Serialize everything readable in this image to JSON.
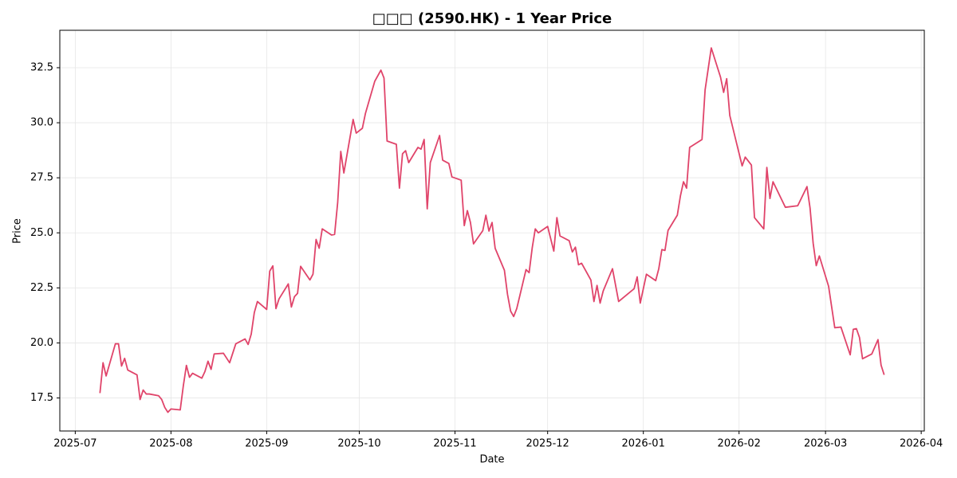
{
  "chart_data": {
    "type": "line",
    "title": "□□□ (2590.HK) - 1 Year Price",
    "x_label": "Date",
    "y_label": "Price",
    "color": "#e0446a",
    "grid": true,
    "x": [
      "2025-07-09",
      "2025-07-10",
      "2025-07-11",
      "2025-07-14",
      "2025-07-15",
      "2025-07-16",
      "2025-07-17",
      "2025-07-18",
      "2025-07-21",
      "2025-07-22",
      "2025-07-23",
      "2025-07-24",
      "2025-07-25",
      "2025-07-28",
      "2025-07-29",
      "2025-07-30",
      "2025-07-31",
      "2025-08-01",
      "2025-08-04",
      "2025-08-05",
      "2025-08-06",
      "2025-08-07",
      "2025-08-08",
      "2025-08-11",
      "2025-08-12",
      "2025-08-13",
      "2025-08-14",
      "2025-08-15",
      "2025-08-18",
      "2025-08-20",
      "2025-08-22",
      "2025-08-25",
      "2025-08-26",
      "2025-08-27",
      "2025-08-28",
      "2025-08-29",
      "2025-09-01",
      "2025-09-02",
      "2025-09-03",
      "2025-09-04",
      "2025-09-05",
      "2025-09-08",
      "2025-09-09",
      "2025-09-10",
      "2025-09-11",
      "2025-09-12",
      "2025-09-15",
      "2025-09-16",
      "2025-09-17",
      "2025-09-18",
      "2025-09-19",
      "2025-09-22",
      "2025-09-23",
      "2025-09-24",
      "2025-09-25",
      "2025-09-26",
      "2025-09-29",
      "2025-09-30",
      "2025-10-02",
      "2025-10-03",
      "2025-10-06",
      "2025-10-08",
      "2025-10-09",
      "2025-10-10",
      "2025-10-13",
      "2025-10-14",
      "2025-10-15",
      "2025-10-16",
      "2025-10-17",
      "2025-10-20",
      "2025-10-21",
      "2025-10-22",
      "2025-10-23",
      "2025-10-24",
      "2025-10-27",
      "2025-10-28",
      "2025-10-30",
      "2025-10-31",
      "2025-11-03",
      "2025-11-04",
      "2025-11-05",
      "2025-11-06",
      "2025-11-07",
      "2025-11-10",
      "2025-11-11",
      "2025-11-12",
      "2025-11-13",
      "2025-11-14",
      "2025-11-17",
      "2025-11-18",
      "2025-11-19",
      "2025-11-20",
      "2025-11-21",
      "2025-11-24",
      "2025-11-25",
      "2025-11-26",
      "2025-11-27",
      "2025-11-28",
      "2025-12-01",
      "2025-12-03",
      "2025-12-04",
      "2025-12-05",
      "2025-12-08",
      "2025-12-09",
      "2025-12-10",
      "2025-12-11",
      "2025-12-12",
      "2025-12-15",
      "2025-12-16",
      "2025-12-17",
      "2025-12-18",
      "2025-12-19",
      "2025-12-22",
      "2025-12-24",
      "2025-12-29",
      "2025-12-30",
      "2025-12-31",
      "2026-01-02",
      "2026-01-05",
      "2026-01-06",
      "2026-01-07",
      "2026-01-08",
      "2026-01-09",
      "2026-01-12",
      "2026-01-13",
      "2026-01-14",
      "2026-01-15",
      "2026-01-16",
      "2026-01-20",
      "2026-01-21",
      "2026-01-23",
      "2026-01-26",
      "2026-01-27",
      "2026-01-28",
      "2026-01-29",
      "2026-02-02",
      "2026-02-03",
      "2026-02-05",
      "2026-02-06",
      "2026-02-09",
      "2026-02-10",
      "2026-02-11",
      "2026-02-12",
      "2026-02-16",
      "2026-02-20",
      "2026-02-23",
      "2026-02-24",
      "2026-02-25",
      "2026-02-26",
      "2026-02-27",
      "2026-03-02",
      "2026-03-04",
      "2026-03-06",
      "2026-03-09",
      "2026-03-10",
      "2026-03-11",
      "2026-03-12",
      "2026-03-13",
      "2026-03-16",
      "2026-03-18",
      "2026-03-19",
      "2026-03-20"
    ],
    "values": [
      17.72,
      19.1,
      18.5,
      19.96,
      19.96,
      18.95,
      19.3,
      18.77,
      18.55,
      17.43,
      17.86,
      17.68,
      17.68,
      17.6,
      17.43,
      17.07,
      16.85,
      17.0,
      16.96,
      18.05,
      18.98,
      18.44,
      18.62,
      18.4,
      18.7,
      19.17,
      18.8,
      19.5,
      19.53,
      19.1,
      19.96,
      20.18,
      19.93,
      20.4,
      21.38,
      21.88,
      21.52,
      23.26,
      23.5,
      21.56,
      22.0,
      22.68,
      21.63,
      22.1,
      22.25,
      23.48,
      22.86,
      23.12,
      24.7,
      24.3,
      25.18,
      24.9,
      24.93,
      26.38,
      28.7,
      27.72,
      30.15,
      29.53,
      29.75,
      30.43,
      31.88,
      32.39,
      32.03,
      29.17,
      29.02,
      27.03,
      28.59,
      28.73,
      28.19,
      28.88,
      28.8,
      29.24,
      26.09,
      28.19,
      29.42,
      28.3,
      28.15,
      27.54,
      27.39,
      25.33,
      26.01,
      25.47,
      24.5,
      25.1,
      25.8,
      25.08,
      25.47,
      24.3,
      23.3,
      22.21,
      21.45,
      21.2,
      21.56,
      23.33,
      23.19,
      24.31,
      25.18,
      25.0,
      25.29,
      24.17,
      25.69,
      24.86,
      24.64,
      24.13,
      24.35,
      23.55,
      23.62,
      22.86,
      21.88,
      22.61,
      21.81,
      22.36,
      23.37,
      21.88,
      22.46,
      23.0,
      21.81,
      23.12,
      22.83,
      23.37,
      24.24,
      24.2,
      25.11,
      25.8,
      26.67,
      27.32,
      27.03,
      28.88,
      29.24,
      31.49,
      33.4,
      32.07,
      31.38,
      32.0,
      30.33,
      28.04,
      28.44,
      28.08,
      25.69,
      25.18,
      27.97,
      26.56,
      27.32,
      26.16,
      26.23,
      27.1,
      26.12,
      24.53,
      23.51,
      23.95,
      22.57,
      20.69,
      20.72,
      19.46,
      20.62,
      20.65,
      20.25,
      19.28,
      19.5,
      20.15,
      18.99,
      18.55
    ],
    "xlim": [
      "2025-06-26",
      "2026-04-02"
    ],
    "xticks": [
      {
        "value": "2025-07-01",
        "label": "2025-07"
      },
      {
        "value": "2025-08-01",
        "label": "2025-08"
      },
      {
        "value": "2025-09-01",
        "label": "2025-09"
      },
      {
        "value": "2025-10-01",
        "label": "2025-10"
      },
      {
        "value": "2025-11-01",
        "label": "2025-11"
      },
      {
        "value": "2025-12-01",
        "label": "2025-12"
      },
      {
        "value": "2026-01-01",
        "label": "2026-01"
      },
      {
        "value": "2026-02-01",
        "label": "2026-02"
      },
      {
        "value": "2026-03-01",
        "label": "2026-03"
      },
      {
        "value": "2026-04-01",
        "label": "2026-04"
      }
    ],
    "ylim": [
      16.0,
      34.2
    ],
    "yticks": [
      17.5,
      {
        "value": 20,
        "label": "20.0"
      },
      22.5,
      {
        "value": 25,
        "label": "25.0"
      },
      27.5,
      {
        "value": 30,
        "label": "30.0"
      },
      32.5
    ]
  }
}
